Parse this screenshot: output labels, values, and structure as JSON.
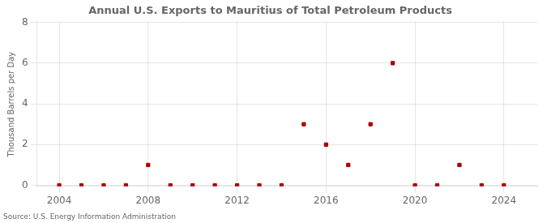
{
  "chart_data": {
    "type": "scatter",
    "title": "Annual U.S. Exports to Mauritius of Total Petroleum Products",
    "ylabel": "Thousand Barrels per Day",
    "annotations": [
      "Source: U.S. Energy Information Administration"
    ],
    "x": [
      2004,
      2005,
      2006,
      2007,
      2008,
      2009,
      2010,
      2011,
      2012,
      2013,
      2014,
      2015,
      2016,
      2017,
      2018,
      2019,
      2020,
      2021,
      2022,
      2023,
      2024
    ],
    "values": [
      0,
      0,
      0,
      0,
      1,
      0,
      0,
      0,
      0,
      0,
      0,
      3,
      2,
      1,
      3,
      6,
      0,
      0,
      1,
      0,
      0
    ],
    "color": "#aa0000",
    "marker": "square",
    "xlim": [
      2003,
      2025.5
    ],
    "ylim": [
      -0.05,
      8
    ],
    "xticks": [
      2004,
      2008,
      2012,
      2016,
      2020,
      2024
    ],
    "yticks": [
      0,
      2,
      4,
      6,
      8
    ],
    "grid": true
  }
}
